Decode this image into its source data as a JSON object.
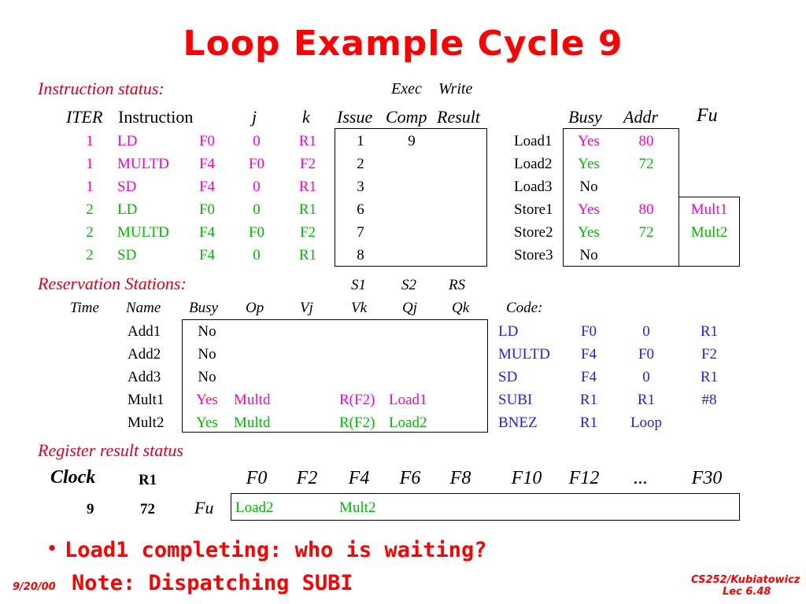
{
  "title": "Loop Example Cycle 9",
  "instr_status": {
    "label": "Instruction status:",
    "exec": "Exec",
    "write": "Write",
    "headers": {
      "iter": "ITER",
      "instruction": "Instruction",
      "j": "j",
      "k": "k",
      "issue": "Issue",
      "comp": "Comp",
      "result": "Result"
    },
    "rows": [
      {
        "iter": "1",
        "op": "LD",
        "dest": "F0",
        "j": "0",
        "k": "R1",
        "issue": "1",
        "comp": "9",
        "result": "",
        "color": "#ff00cc"
      },
      {
        "iter": "1",
        "op": "MULTD",
        "dest": "F4",
        "j": "F0",
        "k": "F2",
        "issue": "2",
        "comp": "",
        "result": "",
        "color": "#ff00cc"
      },
      {
        "iter": "1",
        "op": "SD",
        "dest": "F4",
        "j": "0",
        "k": "R1",
        "issue": "3",
        "comp": "",
        "result": "",
        "color": "#ff00cc"
      },
      {
        "iter": "2",
        "op": "LD",
        "dest": "F0",
        "j": "0",
        "k": "R1",
        "issue": "6",
        "comp": "",
        "result": "",
        "color": "#00bb00"
      },
      {
        "iter": "2",
        "op": "MULTD",
        "dest": "F4",
        "j": "F0",
        "k": "F2",
        "issue": "7",
        "comp": "",
        "result": "",
        "color": "#00bb00"
      },
      {
        "iter": "2",
        "op": "SD",
        "dest": "F4",
        "j": "0",
        "k": "R1",
        "issue": "8",
        "comp": "",
        "result": "",
        "color": "#00bb00"
      }
    ]
  },
  "mem_units": {
    "headers": {
      "busy": "Busy",
      "addr": "Addr",
      "fu": "Fu"
    },
    "rows": [
      {
        "name": "Load1",
        "busy": "Yes",
        "addr": "80",
        "fu": "",
        "color": "#ff00cc"
      },
      {
        "name": "Load2",
        "busy": "Yes",
        "addr": "72",
        "fu": "",
        "color": "#00bb00"
      },
      {
        "name": "Load3",
        "busy": "No",
        "addr": "",
        "fu": "",
        "color": "#000000"
      },
      {
        "name": "Store1",
        "busy": "Yes",
        "addr": "80",
        "fu": "Mult1",
        "color": "#ff00cc"
      },
      {
        "name": "Store2",
        "busy": "Yes",
        "addr": "72",
        "fu": "Mult2",
        "color": "#00bb00"
      },
      {
        "name": "Store3",
        "busy": "No",
        "addr": "",
        "fu": "",
        "color": "#000000"
      }
    ]
  },
  "res_stations": {
    "label": "Reservation Stations:",
    "s1": "S1",
    "s2": "S2",
    "rs": "RS",
    "headers": {
      "time": "Time",
      "name": "Name",
      "busy": "Busy",
      "op": "Op",
      "vj": "Vj",
      "vk": "Vk",
      "qj": "Qj",
      "qk": "Qk",
      "code": "Code:"
    },
    "rows": [
      {
        "name": "Add1",
        "busy": "No",
        "op": "",
        "vk": "",
        "qj": "",
        "color": "#000000"
      },
      {
        "name": "Add2",
        "busy": "No",
        "op": "",
        "vk": "",
        "qj": "",
        "color": "#000000"
      },
      {
        "name": "Add3",
        "busy": "No",
        "op": "",
        "vk": "",
        "qj": "",
        "color": "#000000"
      },
      {
        "name": "Mult1",
        "busy": "Yes",
        "op": "Multd",
        "vk": "R(F2)",
        "qj": "Load1",
        "color": "#ff00cc"
      },
      {
        "name": "Mult2",
        "busy": "Yes",
        "op": "Multd",
        "vk": "R(F2)",
        "qj": "Load2",
        "color": "#00bb00"
      }
    ]
  },
  "code": [
    {
      "op": "LD",
      "a": "F0",
      "b": "0",
      "c": "R1"
    },
    {
      "op": "MULTD",
      "a": "F4",
      "b": "F0",
      "c": "F2"
    },
    {
      "op": "SD",
      "a": "F4",
      "b": "0",
      "c": "R1"
    },
    {
      "op": "SUBI",
      "a": "R1",
      "b": "R1",
      "c": "#8"
    },
    {
      "op": "BNEZ",
      "a": "R1",
      "b": "Loop",
      "c": ""
    }
  ],
  "reg_status": {
    "label": "Register result status",
    "clock_label": "Clock",
    "r1_label": "R1",
    "clock": "9",
    "r1": "72",
    "fu_label": "Fu",
    "regs": [
      "F0",
      "F2",
      "F4",
      "F6",
      "F8",
      "F10",
      "F12",
      "...",
      "F30"
    ],
    "f0": "Load2",
    "f4": "Mult2"
  },
  "bullets": [
    "Load1 completing: who is waiting?",
    "Note: Dispatching SUBI"
  ],
  "footer": {
    "date": "9/20/00",
    "course": "CS252/Kubiatowicz",
    "lec": "Lec 6.48"
  }
}
